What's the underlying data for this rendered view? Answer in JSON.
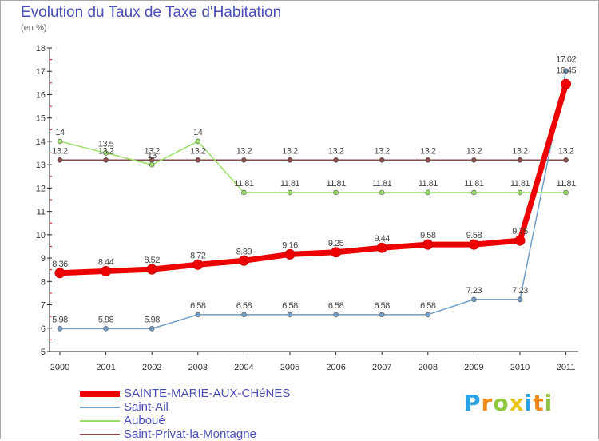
{
  "chart_data": {
    "type": "line",
    "title": "Evolution du Taux de Taxe d'Habitation",
    "unit_label": "(en %)",
    "x": [
      "2000",
      "2001",
      "2002",
      "2003",
      "2004",
      "2005",
      "2006",
      "2007",
      "2008",
      "2009",
      "2010",
      "2011"
    ],
    "ylim": [
      5,
      18
    ],
    "yticks": [
      "5",
      "6",
      "7",
      "8",
      "9",
      "10",
      "11",
      "12",
      "13",
      "14",
      "15",
      "16",
      "17",
      "18"
    ],
    "grid": false,
    "legend_position": "bottom-left",
    "series": [
      {
        "name": "SAINTE-MARIE-AUX-CHéNES",
        "color": "#ee0000",
        "values": [
          8.36,
          8.44,
          8.52,
          8.72,
          8.89,
          9.16,
          9.25,
          9.44,
          9.58,
          9.58,
          9.75,
          16.45
        ],
        "labels": [
          "8.36",
          "8.44",
          "8.52",
          "8.72",
          "8.89",
          "9.16",
          "9.25",
          "9.44",
          "9.58",
          "9.58",
          "9.75",
          "16.45"
        ]
      },
      {
        "name": "Saint-Ail",
        "color": "#6f9ec8",
        "values": [
          5.98,
          5.98,
          5.98,
          6.58,
          6.58,
          6.58,
          6.58,
          6.58,
          6.58,
          7.23,
          7.23,
          17.02
        ],
        "labels": [
          "5.98",
          "5.98",
          "5.98",
          "6.58",
          "6.58",
          "6.58",
          "6.58",
          "6.58",
          "6.58",
          "7.23",
          "7.23",
          "17.02"
        ]
      },
      {
        "name": "Auboué",
        "color": "#99dd66",
        "values": [
          14,
          13.5,
          13,
          14,
          11.81,
          11.81,
          11.81,
          11.81,
          11.81,
          11.81,
          11.81,
          11.81
        ],
        "labels": [
          "14",
          "13.5",
          "13",
          "14",
          "11.81",
          "11.81",
          "11.81",
          "11.81",
          "11.81",
          "11.81",
          "11.81",
          "11.81"
        ]
      },
      {
        "name": "Saint-Privat-la-Montagne",
        "color": "#8b4a4a",
        "values": [
          13.2,
          13.2,
          13.2,
          13.2,
          13.2,
          13.2,
          13.2,
          13.2,
          13.2,
          13.2,
          13.2,
          13.2
        ],
        "labels": [
          "13.2",
          "13.2",
          "13.2",
          "13.2",
          "13.2",
          "13.2",
          "13.2",
          "13.2",
          "13.2",
          "13.2",
          "13.2",
          "13.2"
        ]
      }
    ]
  },
  "logo": {
    "letters": [
      "P",
      "r",
      "o",
      "x",
      "i",
      "t",
      "i"
    ],
    "colors": [
      "#2aa3e6",
      "#f28a1b",
      "#8cc63f",
      "#e8c416",
      "#2aa3e6",
      "#f28a1b",
      "#8cc63f"
    ]
  }
}
